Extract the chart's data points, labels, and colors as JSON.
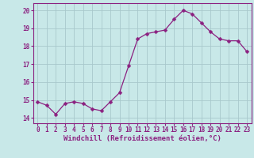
{
  "x": [
    0,
    1,
    2,
    3,
    4,
    5,
    6,
    7,
    8,
    9,
    10,
    11,
    12,
    13,
    14,
    15,
    16,
    17,
    18,
    19,
    20,
    21,
    22,
    23
  ],
  "y": [
    14.9,
    14.7,
    14.2,
    14.8,
    14.9,
    14.8,
    14.5,
    14.4,
    14.9,
    15.4,
    16.9,
    18.4,
    18.7,
    18.8,
    18.9,
    19.5,
    20.0,
    19.8,
    19.3,
    18.8,
    18.4,
    18.3,
    18.3,
    17.7
  ],
  "line_color": "#8b2080",
  "marker": "D",
  "markersize": 2.5,
  "linewidth": 0.9,
  "xlabel": "Windchill (Refroidissement éolien,°C)",
  "xlabel_fontsize": 6.5,
  "ylabel_ticks": [
    14,
    15,
    16,
    17,
    18,
    19,
    20
  ],
  "xtick_labels": [
    "0",
    "1",
    "2",
    "3",
    "4",
    "5",
    "6",
    "7",
    "8",
    "9",
    "10",
    "11",
    "12",
    "13",
    "14",
    "15",
    "16",
    "17",
    "18",
    "19",
    "20",
    "21",
    "22",
    "23"
  ],
  "ylim": [
    13.7,
    20.4
  ],
  "xlim": [
    -0.5,
    23.5
  ],
  "bg_color": "#c8e8e8",
  "grid_color": "#a8c8cc",
  "tick_color": "#8b2080",
  "tick_fontsize": 5.5
}
